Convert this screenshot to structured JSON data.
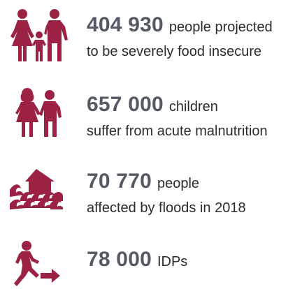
{
  "colors": {
    "icon": "#9b2243",
    "number": "#545a63",
    "text": "#2b2b2b"
  },
  "stats": [
    {
      "icon": "family-icon",
      "number": "404 930",
      "unit": "people projected",
      "description": "to be severely food insecure"
    },
    {
      "icon": "children-icon",
      "number": "657 000",
      "unit": "children",
      "description": "suffer from acute malnutrition"
    },
    {
      "icon": "flood-icon",
      "number": "70 770",
      "unit": "people",
      "description": "affected by floods in 2018"
    },
    {
      "icon": "idp-walking-icon",
      "number": "78 000",
      "unit": "IDPs",
      "description": ""
    }
  ]
}
